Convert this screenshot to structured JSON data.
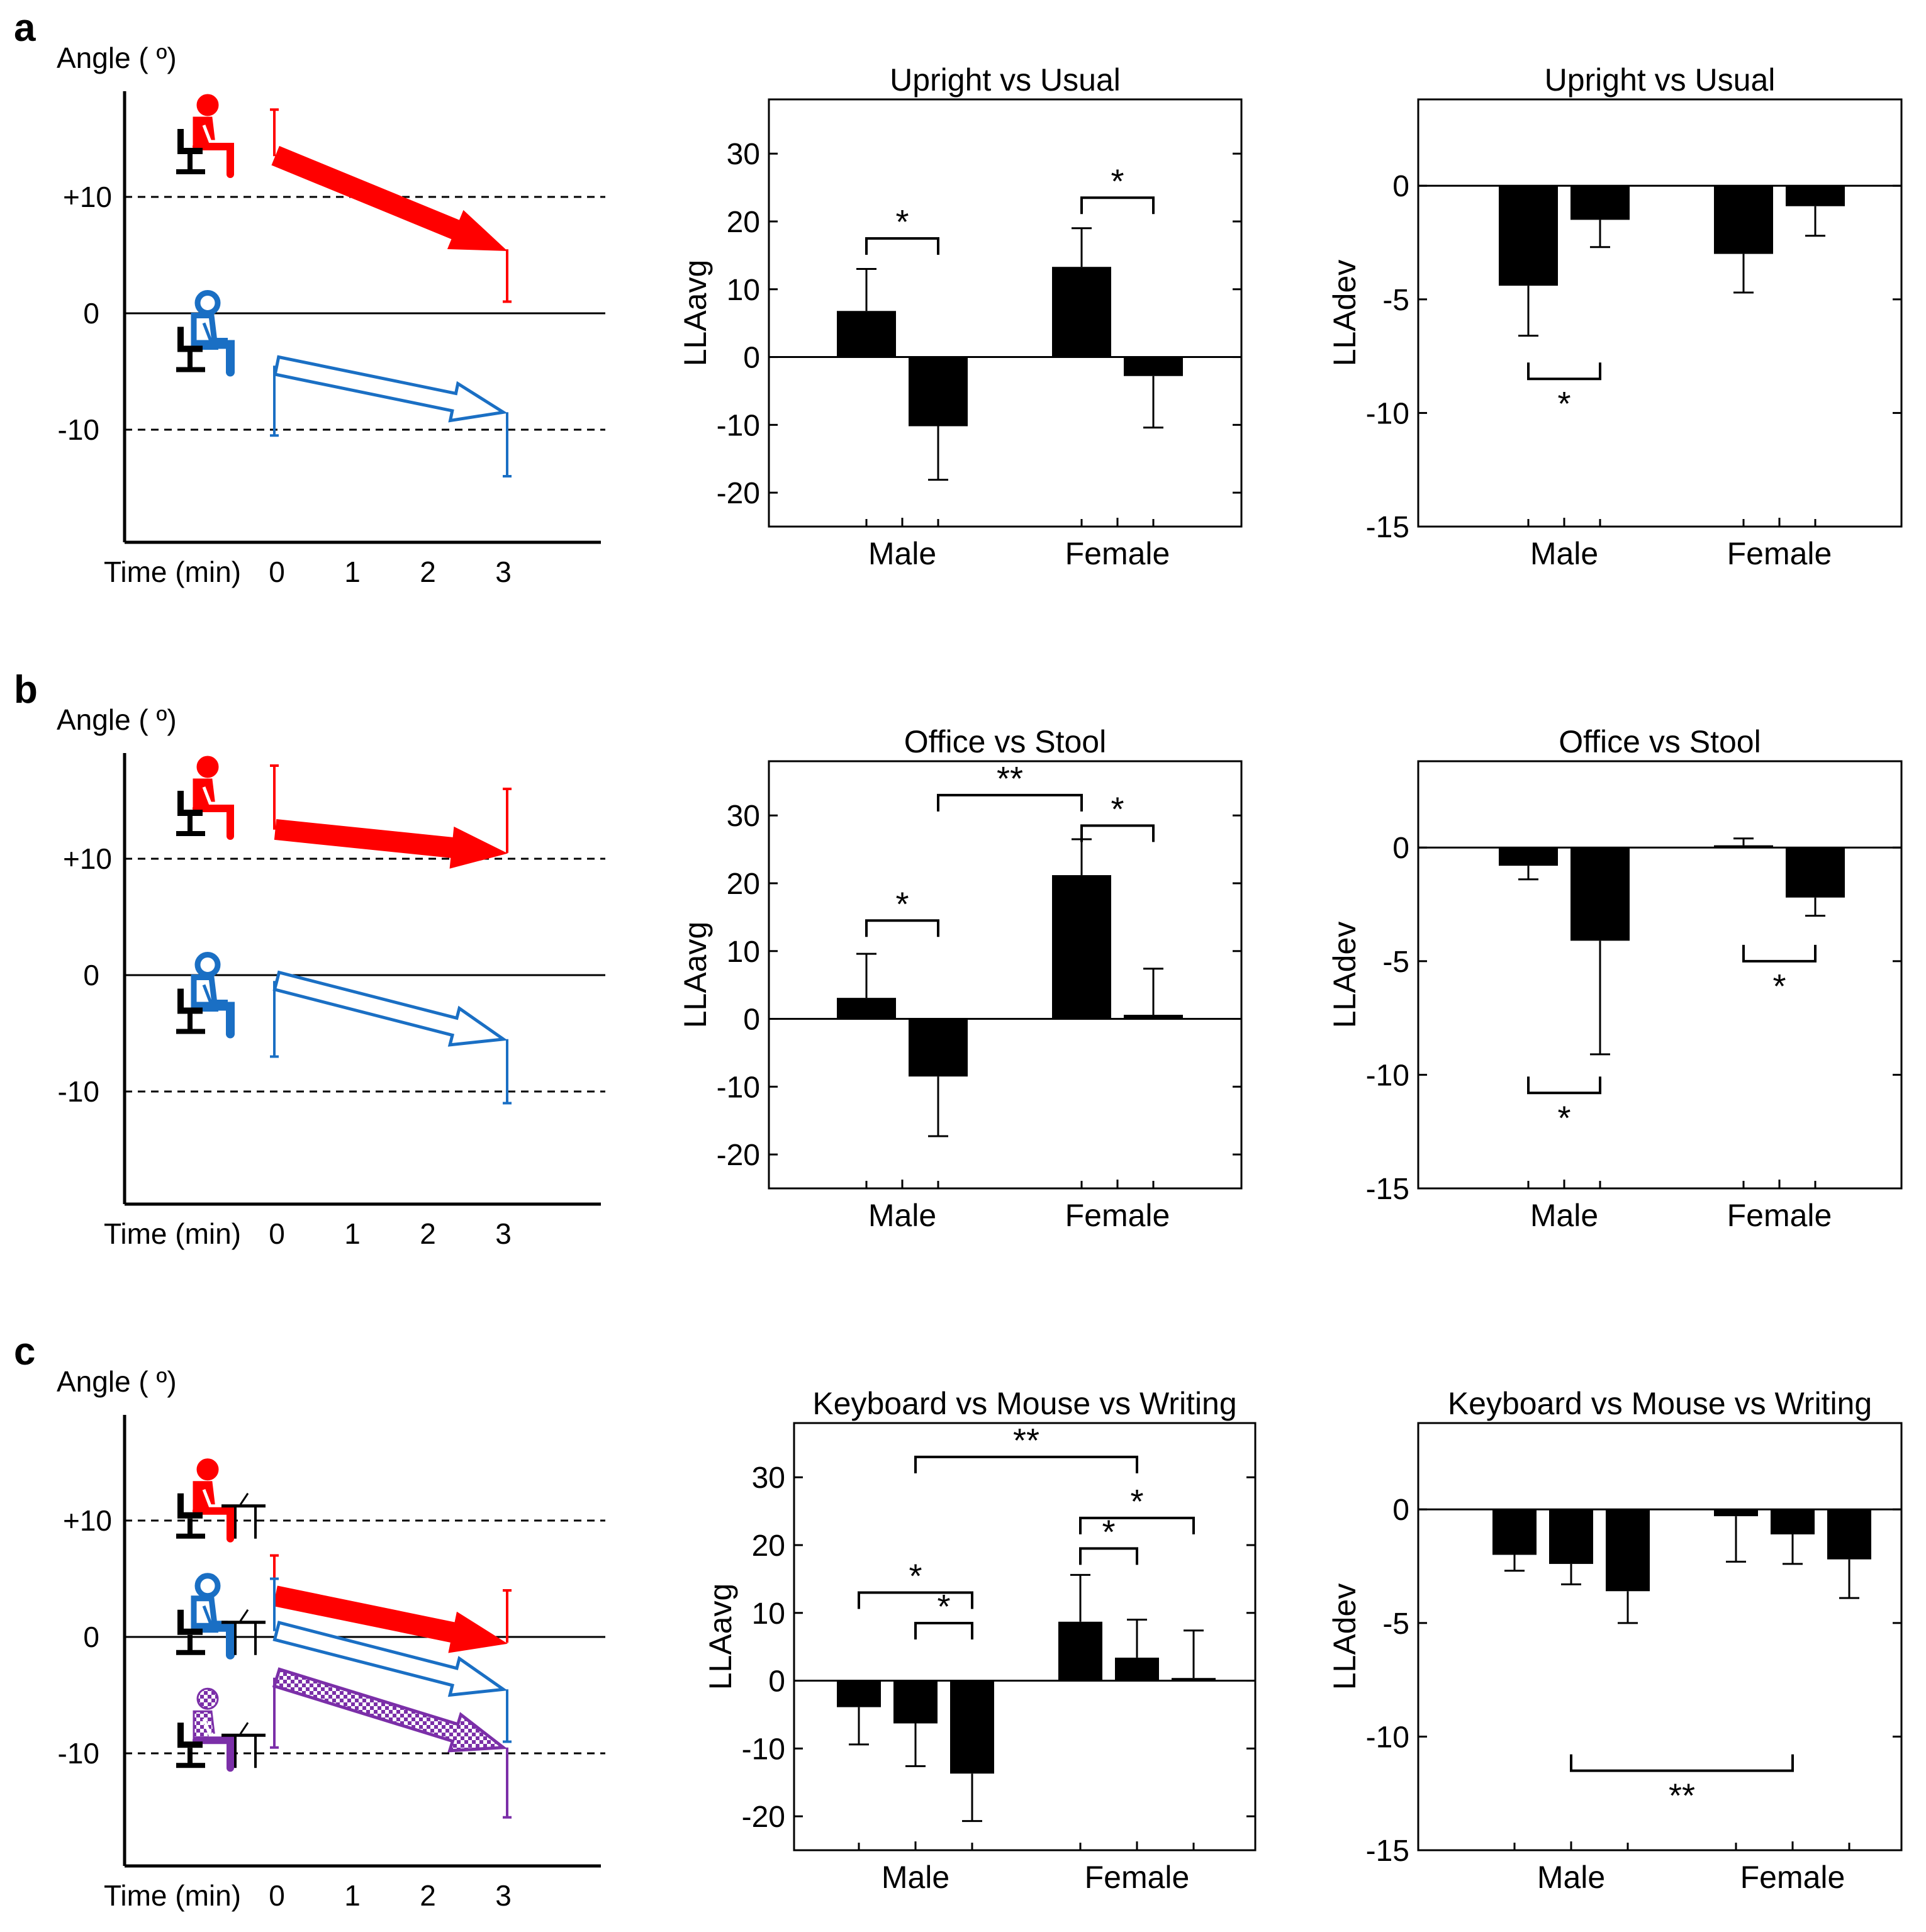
{
  "colors": {
    "red": "#ff0000",
    "blue": "#1a6fc4",
    "purple": "#7b2fa8",
    "black": "#000000"
  },
  "panels": [
    {
      "label": "a",
      "schematic": {
        "ylabel": "Angle ( º)",
        "ytick_labels": [
          "+10",
          "0",
          "-10"
        ],
        "xlabel": "Time (min)",
        "xtick_labels": [
          "0",
          "1",
          "2",
          "3"
        ],
        "icons": [
          "red-upright-sitter-icon",
          "blue-slouched-sitter-icon"
        ],
        "lines": [
          {
            "color": "red",
            "style": "solid",
            "start": 13.5,
            "end": 5.5,
            "start_err": [
              4,
              0
            ],
            "end_err": [
              0,
              4.5
            ]
          },
          {
            "color": "blue",
            "style": "open",
            "start": -4.5,
            "end": -8.5,
            "start_err": [
              0,
              6
            ],
            "end_err": [
              0,
              5.5
            ]
          }
        ]
      },
      "charts": [
        {
          "type": "bar",
          "title": "Upright vs Usual",
          "ylabel": "LLAavg",
          "categories": [
            "Male",
            "Female"
          ],
          "ylim": [
            -25,
            38
          ],
          "yticks": [
            30,
            20,
            10,
            0,
            -10,
            -20
          ],
          "series": [
            {
              "name": "Upright",
              "values": [
                6.8,
                13.3
              ],
              "err": [
                6.2,
                5.7
              ]
            },
            {
              "name": "Usual",
              "values": [
                -10.2,
                -2.8
              ],
              "err": [
                7.9,
                7.6
              ]
            }
          ],
          "sig": [
            {
              "from": [
                0,
                0
              ],
              "to": [
                0,
                1
              ],
              "y": 17.5,
              "side": "above",
              "text": "*"
            },
            {
              "from": [
                1,
                0
              ],
              "to": [
                1,
                1
              ],
              "y": 23.5,
              "side": "above",
              "text": "*"
            }
          ]
        },
        {
          "type": "bar",
          "title": "Upright vs Usual",
          "ylabel": "LLAdev",
          "categories": [
            "Male",
            "Female"
          ],
          "ylim": [
            -15,
            3.8
          ],
          "yticks": [
            0,
            -5,
            -10,
            -15
          ],
          "series": [
            {
              "name": "Upright",
              "values": [
                -4.4,
                -3.0
              ],
              "err": [
                2.2,
                1.7
              ]
            },
            {
              "name": "Usual",
              "values": [
                -1.5,
                -0.9
              ],
              "err": [
                1.2,
                1.3
              ]
            }
          ],
          "sig": [
            {
              "from": [
                0,
                0
              ],
              "to": [
                0,
                1
              ],
              "y": -8.5,
              "side": "below",
              "text": "*"
            }
          ]
        }
      ]
    },
    {
      "label": "b",
      "schematic": {
        "ylabel": "Angle ( º)",
        "ytick_labels": [
          "+10",
          "0",
          "-10"
        ],
        "xlabel": "Time (min)",
        "xtick_labels": [
          "0",
          "1",
          "2",
          "3"
        ],
        "icons": [
          "red-office-chair-sitter-icon",
          "blue-stool-sitter-icon"
        ],
        "lines": [
          {
            "color": "red",
            "style": "solid",
            "start": 12.5,
            "end": 10.5,
            "start_err": [
              5.5,
              0
            ],
            "end_err": [
              5.5,
              0
            ]
          },
          {
            "color": "blue",
            "style": "open",
            "start": -0.5,
            "end": -5.5,
            "start_err": [
              0,
              6.5
            ],
            "end_err": [
              0,
              5.5
            ]
          }
        ]
      },
      "charts": [
        {
          "type": "bar",
          "title": "Office vs Stool",
          "ylabel": "LLAavg",
          "categories": [
            "Male",
            "Female"
          ],
          "ylim": [
            -25,
            38
          ],
          "yticks": [
            30,
            20,
            10,
            0,
            -10,
            -20
          ],
          "series": [
            {
              "name": "Office",
              "values": [
                3.1,
                21.2
              ],
              "err": [
                6.5,
                5.3
              ]
            },
            {
              "name": "Stool",
              "values": [
                -8.5,
                0.6
              ],
              "err": [
                8.8,
                6.8
              ]
            }
          ],
          "sig": [
            {
              "from": [
                0,
                0
              ],
              "to": [
                0,
                1
              ],
              "y": 14.5,
              "side": "above",
              "text": "*"
            },
            {
              "from": [
                0,
                1
              ],
              "to": [
                1,
                0
              ],
              "y": 33.0,
              "side": "above",
              "text": "**"
            },
            {
              "from": [
                1,
                0
              ],
              "to": [
                1,
                1
              ],
              "y": 28.5,
              "side": "above",
              "text": "*"
            }
          ]
        },
        {
          "type": "bar",
          "title": "Office vs Stool",
          "ylabel": "LLAdev",
          "categories": [
            "Male",
            "Female"
          ],
          "ylim": [
            -15,
            3.8
          ],
          "yticks": [
            0,
            -5,
            -10,
            -15
          ],
          "series": [
            {
              "name": "Office",
              "values": [
                -0.8,
                0.1
              ],
              "err": [
                0.6,
                0.3
              ]
            },
            {
              "name": "Stool",
              "values": [
                -4.1,
                -2.2
              ],
              "err": [
                5.0,
                0.8
              ]
            }
          ],
          "sig": [
            {
              "from": [
                0,
                0
              ],
              "to": [
                0,
                1
              ],
              "y": -10.8,
              "side": "below",
              "text": "*"
            },
            {
              "from": [
                1,
                0
              ],
              "to": [
                1,
                1
              ],
              "y": -5.0,
              "side": "below",
              "text": "*"
            }
          ]
        }
      ]
    },
    {
      "label": "c",
      "schematic": {
        "ylabel": "Angle ( º)",
        "ytick_labels": [
          "+10",
          "0",
          "-10"
        ],
        "xlabel": "Time (min)",
        "xtick_labels": [
          "0",
          "1",
          "2",
          "3"
        ],
        "icons": [
          "red-keyboard-user-icon",
          "blue-mouse-user-icon",
          "purple-writing-user-icon"
        ],
        "lines": [
          {
            "color": "red",
            "style": "solid",
            "start": 3.5,
            "end": -0.5,
            "start_err": [
              3.5,
              0
            ],
            "end_err": [
              4.5,
              0
            ]
          },
          {
            "color": "blue",
            "style": "open",
            "start": 0.5,
            "end": -4.5,
            "start_err": [
              4.5,
              0
            ],
            "end_err": [
              0,
              4.5
            ]
          },
          {
            "color": "purple",
            "style": "checkered",
            "start": -3.5,
            "end": -9.5,
            "start_err": [
              0,
              6
            ],
            "end_err": [
              0,
              6
            ]
          }
        ]
      },
      "charts": [
        {
          "type": "bar",
          "title": "Keyboard vs Mouse vs Writing",
          "ylabel": "LLAavg",
          "categories": [
            "Male",
            "Female"
          ],
          "ylim": [
            -25,
            38
          ],
          "yticks": [
            30,
            20,
            10,
            0,
            -10,
            -20
          ],
          "series": [
            {
              "name": "Keyboard",
              "values": [
                -3.9,
                8.7
              ],
              "err": [
                5.5,
                6.9
              ]
            },
            {
              "name": "Mouse",
              "values": [
                -6.3,
                3.4
              ],
              "err": [
                6.3,
                5.6
              ]
            },
            {
              "name": "Writing",
              "values": [
                -13.7,
                0.4
              ],
              "err": [
                7.0,
                7.0
              ]
            }
          ],
          "sig": [
            {
              "from": [
                0,
                0
              ],
              "to": [
                0,
                2
              ],
              "y": 13.0,
              "side": "above",
              "text": "*"
            },
            {
              "from": [
                0,
                1
              ],
              "to": [
                0,
                2
              ],
              "y": 8.5,
              "side": "above",
              "text": "*"
            },
            {
              "from": [
                0,
                1
              ],
              "to": [
                1,
                1
              ],
              "y": 33.0,
              "side": "above",
              "text": "**"
            },
            {
              "from": [
                1,
                0
              ],
              "to": [
                1,
                2
              ],
              "y": 24.0,
              "side": "above",
              "text": "*"
            },
            {
              "from": [
                1,
                0
              ],
              "to": [
                1,
                1
              ],
              "y": 19.5,
              "side": "above",
              "text": "*"
            }
          ]
        },
        {
          "type": "bar",
          "title": "Keyboard vs Mouse vs Writing",
          "ylabel": "LLAdev",
          "categories": [
            "Male",
            "Female"
          ],
          "ylim": [
            -15,
            3.8
          ],
          "yticks": [
            0,
            -5,
            -10,
            -15
          ],
          "series": [
            {
              "name": "Keyboard",
              "values": [
                -2.0,
                -0.3
              ],
              "err": [
                0.7,
                2.0
              ]
            },
            {
              "name": "Mouse",
              "values": [
                -2.4,
                -1.1
              ],
              "err": [
                0.9,
                1.3
              ]
            },
            {
              "name": "Writing",
              "values": [
                -3.6,
                -2.2
              ],
              "err": [
                1.4,
                1.7
              ]
            }
          ],
          "sig": [
            {
              "from": [
                0,
                1
              ],
              "to": [
                1,
                1
              ],
              "y": -11.5,
              "side": "below",
              "text": "**"
            }
          ]
        }
      ]
    }
  ]
}
